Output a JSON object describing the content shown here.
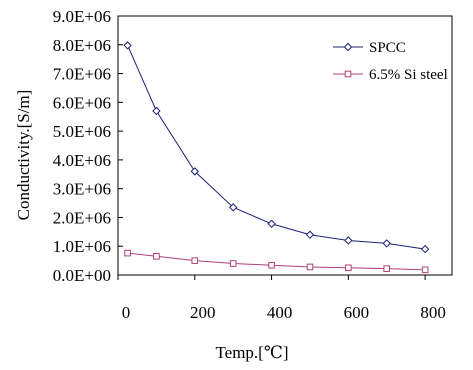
{
  "chart_data": {
    "type": "line",
    "xlabel": "Temp.[℃]",
    "ylabel": "Conductivity.[S/m]",
    "xlim": [
      0,
      870
    ],
    "ylim": [
      0,
      9000000
    ],
    "x_ticks": [
      {
        "value": 0,
        "label": "0"
      },
      {
        "value": 200,
        "label": "200"
      },
      {
        "value": 400,
        "label": "400"
      },
      {
        "value": 600,
        "label": "600"
      },
      {
        "value": 800,
        "label": "800"
      }
    ],
    "y_ticks": [
      {
        "value": 0,
        "label": "0.0E+00"
      },
      {
        "value": 1000000,
        "label": "1.0E+06"
      },
      {
        "value": 2000000,
        "label": "2.0E+06"
      },
      {
        "value": 3000000,
        "label": "3.0E+06"
      },
      {
        "value": 4000000,
        "label": "4.0E+06"
      },
      {
        "value": 5000000,
        "label": "5.0E+06"
      },
      {
        "value": 6000000,
        "label": "6.0E+06"
      },
      {
        "value": 7000000,
        "label": "7.0E+06"
      },
      {
        "value": 8000000,
        "label": "8.0E+06"
      },
      {
        "value": 9000000,
        "label": "9.0E+06"
      }
    ],
    "grid": false,
    "legend_position": "top-right",
    "series": [
      {
        "name": "SPCC",
        "color": "#1f1f7a",
        "marker": "diamond",
        "x": [
          25,
          100,
          200,
          300,
          400,
          500,
          600,
          700,
          800
        ],
        "y": [
          7980000,
          5700000,
          3600000,
          2350000,
          1780000,
          1400000,
          1200000,
          1100000,
          900000
        ]
      },
      {
        "name": "6.5% Si steel",
        "color": "#b0407a",
        "marker": "square",
        "x": [
          25,
          100,
          200,
          300,
          400,
          500,
          600,
          700,
          800
        ],
        "y": [
          760000,
          650000,
          500000,
          400000,
          340000,
          280000,
          250000,
          220000,
          180000
        ]
      }
    ]
  }
}
